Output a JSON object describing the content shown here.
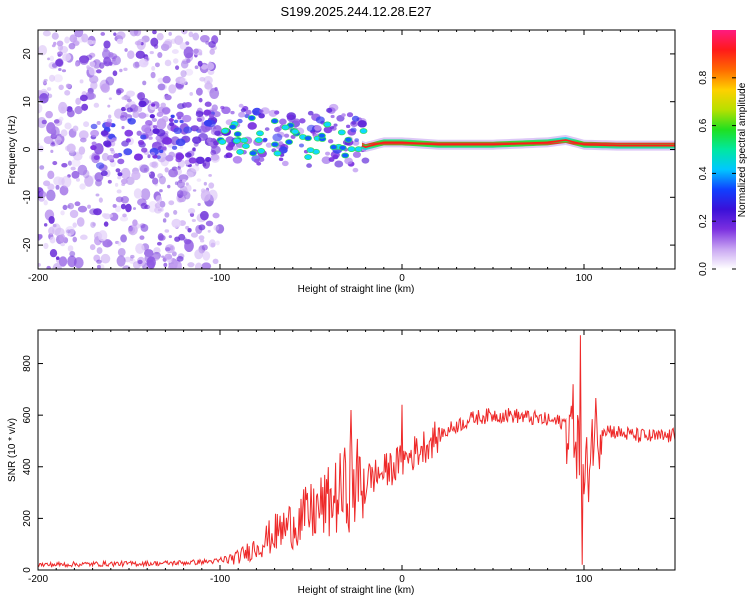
{
  "title": "S199.2025.244.12.28.E27",
  "chart_data": [
    {
      "type": "heatmap",
      "xlabel": "Height of straight line (km)",
      "ylabel": "Frequency (Hz)",
      "xlim": [
        -200,
        150
      ],
      "ylim": [
        -25,
        25
      ],
      "xticks": [
        -200,
        -100,
        0,
        100
      ],
      "yticks": [
        -20,
        -10,
        0,
        10,
        20
      ],
      "colorbar": {
        "label": "Normalized spectral amplitude",
        "range": [
          0,
          1
        ],
        "ticks": [
          0.0,
          0.2,
          0.4,
          0.6,
          0.8
        ],
        "colors": [
          "#ffffff",
          "#c9a6f2",
          "#7b2fe0",
          "#3a10d8",
          "#1040ff",
          "#00c8ff",
          "#00e8a0",
          "#20e020",
          "#b8e000",
          "#ffd000",
          "#ff6a00",
          "#ff1a1a",
          "#ff1a80"
        ]
      },
      "features": [
        {
          "name": "scattered noise",
          "x_range": [
            -200,
            -100
          ],
          "freq_range": [
            -25,
            25
          ],
          "amplitude": 0.1
        },
        {
          "name": "signal trace",
          "points": [
            [
              -150,
              4.5
            ],
            [
              -120,
              3.5
            ],
            [
              -100,
              3.8
            ],
            [
              -85,
              3
            ],
            [
              -70,
              2.5
            ],
            [
              -55,
              2
            ],
            [
              -40,
              3
            ],
            [
              -30,
              2
            ],
            [
              -20,
              0.5
            ],
            [
              -10,
              1.5
            ],
            [
              0,
              1.5
            ],
            [
              20,
              1
            ],
            [
              50,
              1
            ],
            [
              80,
              1.5
            ],
            [
              90,
              2
            ],
            [
              100,
              1
            ],
            [
              120,
              0.8
            ],
            [
              150,
              0.8
            ]
          ],
          "amplitude": 0.9
        }
      ]
    },
    {
      "type": "line",
      "xlabel": "Height of straight line (km)",
      "ylabel": "SNR (10 * v/v)",
      "xlim": [
        -200,
        150
      ],
      "ylim": [
        0,
        930
      ],
      "xticks": [
        -200,
        -100,
        0,
        100
      ],
      "yticks": [
        0,
        200,
        400,
        600,
        800
      ],
      "series": [
        {
          "name": "SNR",
          "color": "#ee2a2a",
          "x": [
            -200,
            -180,
            -160,
            -140,
            -120,
            -100,
            -90,
            -80,
            -70,
            -60,
            -50,
            -40,
            -30,
            -20,
            -10,
            0,
            10,
            20,
            30,
            40,
            50,
            60,
            70,
            80,
            90,
            95,
            100,
            105,
            110,
            120,
            130,
            140,
            150
          ],
          "y": [
            20,
            22,
            24,
            25,
            28,
            35,
            50,
            90,
            140,
            180,
            220,
            260,
            320,
            350,
            380,
            420,
            470,
            520,
            560,
            590,
            600,
            600,
            590,
            580,
            570,
            560,
            300,
            540,
            550,
            530,
            520,
            515,
            520
          ],
          "spikes": [
            {
              "x": -28,
              "y": 620
            },
            {
              "x": -20,
              "y": 280
            },
            {
              "x": 0,
              "y": 640
            },
            {
              "x": 98,
              "y": 910
            },
            {
              "x": 99,
              "y": 20
            }
          ]
        }
      ]
    }
  ]
}
